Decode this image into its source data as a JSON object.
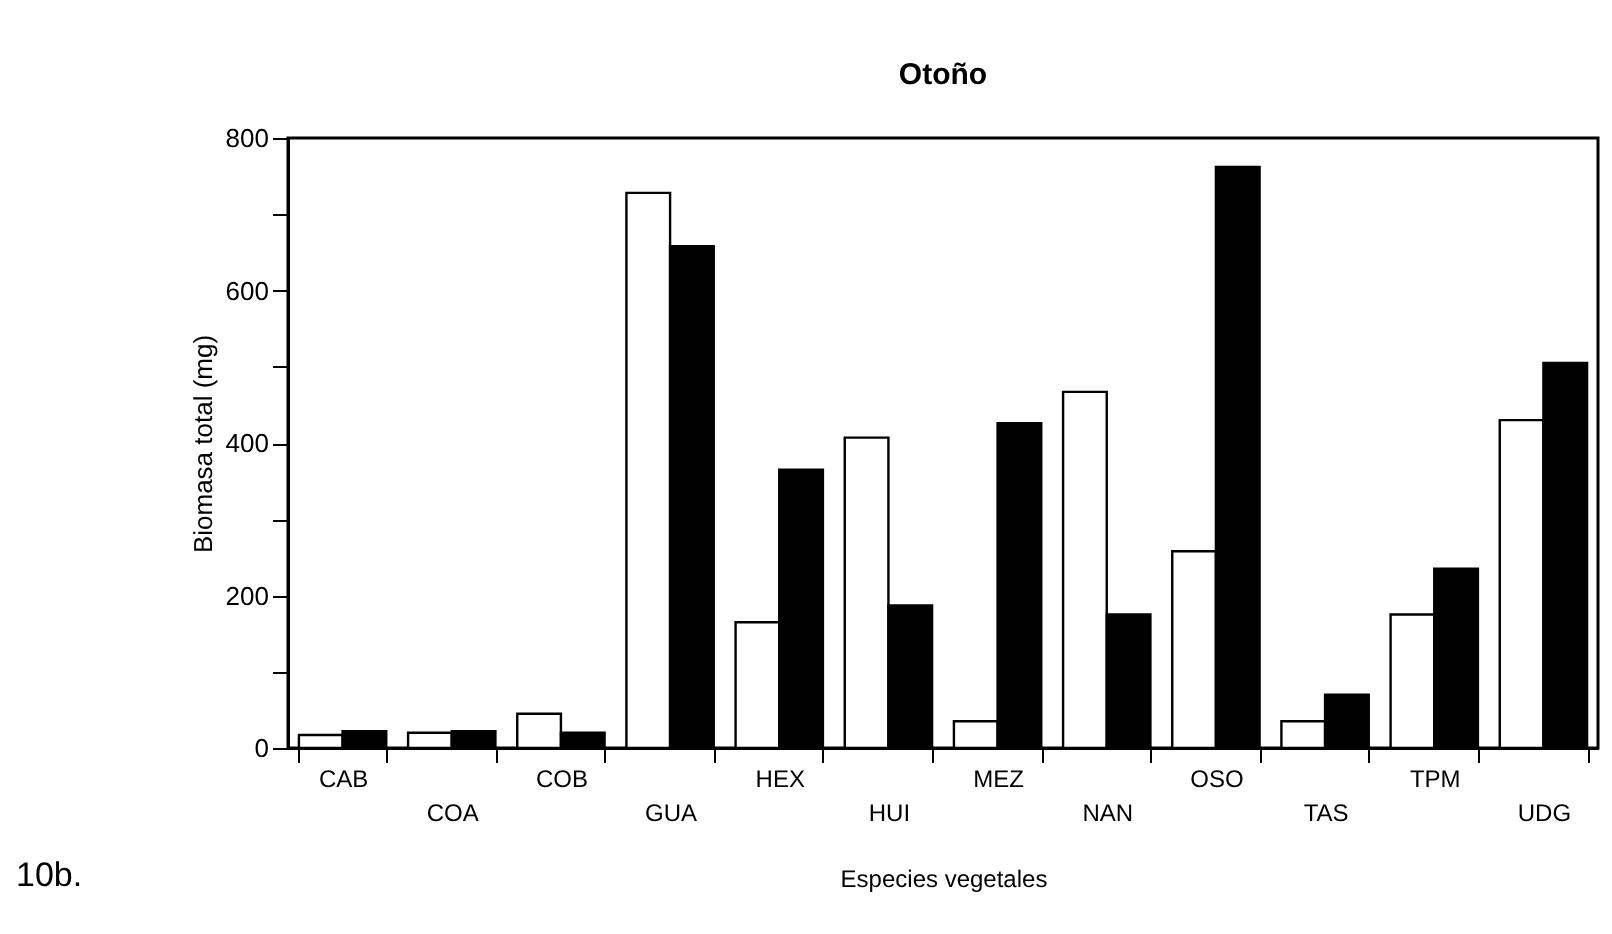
{
  "chart_data": {
    "type": "bar",
    "title": "Otoño",
    "xlabel": "Especies vegetales",
    "ylabel": "Biomasa total (mg)",
    "categories": [
      "CAB",
      "COA",
      "COB",
      "GUA",
      "HEX",
      "HUI",
      "MEZ",
      "NAN",
      "OSO",
      "TAS",
      "TPM",
      "UDG"
    ],
    "series": [
      {
        "color": "#ffffff",
        "values": [
          17,
          20,
          45,
          728,
          165,
          407,
          35,
          467,
          258,
          35,
          175,
          430
        ]
      },
      {
        "color": "#000000",
        "values": [
          22,
          22,
          20,
          658,
          365,
          187,
          426,
          175,
          762,
          70,
          235,
          505
        ]
      }
    ],
    "ylim": [
      0,
      800
    ],
    "yticks": [
      0,
      {
        "value": 100,
        "label": null
      },
      200,
      {
        "value": 300,
        "label": null
      },
      400,
      {
        "value": 500,
        "label": null
      },
      600,
      {
        "value": 700,
        "label": null
      },
      800
    ],
    "grid": false,
    "legend": false,
    "annotations": [
      "10b."
    ]
  }
}
